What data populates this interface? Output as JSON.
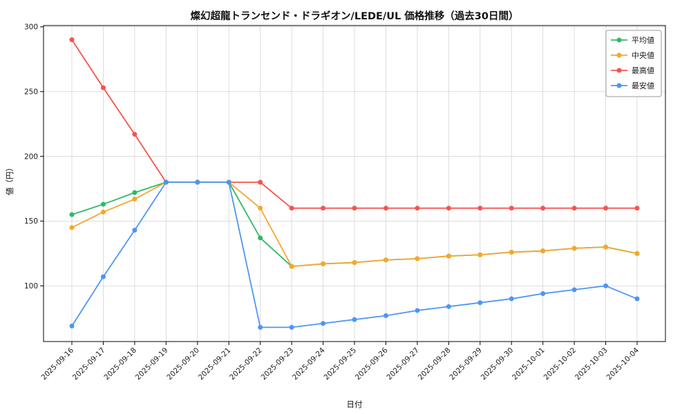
{
  "chart_data": {
    "type": "line",
    "title": "燦幻超龍トランセンド・ドラギオン/LEDE/UL 価格推移（過去30日間）",
    "xlabel": "日付",
    "ylabel": "値（円）",
    "ylim": [
      57,
      301
    ],
    "yticks": [
      100,
      150,
      200,
      250,
      300
    ],
    "grid": true,
    "legend_position": "upper right",
    "x": [
      "2025-09-16",
      "2025-09-17",
      "2025-09-18",
      "2025-09-19",
      "2025-09-20",
      "2025-09-21",
      "2025-09-22",
      "2025-09-23",
      "2025-09-24",
      "2025-09-25",
      "2025-09-26",
      "2025-09-27",
      "2025-09-28",
      "2025-09-29",
      "2025-09-30",
      "2025-10-01",
      "2025-10-02",
      "2025-10-03",
      "2025-10-04"
    ],
    "series": [
      {
        "name": "平均値",
        "id": "average",
        "color": "#2dba66",
        "values": [
          155,
          163,
          172,
          180,
          180,
          180,
          137,
          115,
          117,
          118,
          120,
          121,
          123,
          124,
          126,
          127,
          129,
          130,
          125
        ]
      },
      {
        "name": "中央値",
        "id": "median",
        "color": "#f7a62c",
        "values": [
          145,
          157,
          167,
          180,
          180,
          180,
          160,
          115,
          117,
          118,
          120,
          121,
          123,
          124,
          126,
          127,
          129,
          130,
          125
        ]
      },
      {
        "name": "最高値",
        "id": "max",
        "color": "#f7534d",
        "values": [
          290,
          253,
          217,
          180,
          180,
          180,
          180,
          160,
          160,
          160,
          160,
          160,
          160,
          160,
          160,
          160,
          160,
          160,
          160
        ]
      },
      {
        "name": "最安値",
        "id": "min",
        "color": "#4d96f3",
        "values": [
          69,
          107,
          143,
          180,
          180,
          180,
          68,
          68,
          71,
          74,
          77,
          81,
          84,
          87,
          90,
          94,
          97,
          100,
          90
        ]
      }
    ],
    "colors": {
      "grid": "#d8d8d8",
      "axis_border": "#000000",
      "legend_border": "#9a9a9a",
      "legend_background": "#ffffff"
    }
  }
}
